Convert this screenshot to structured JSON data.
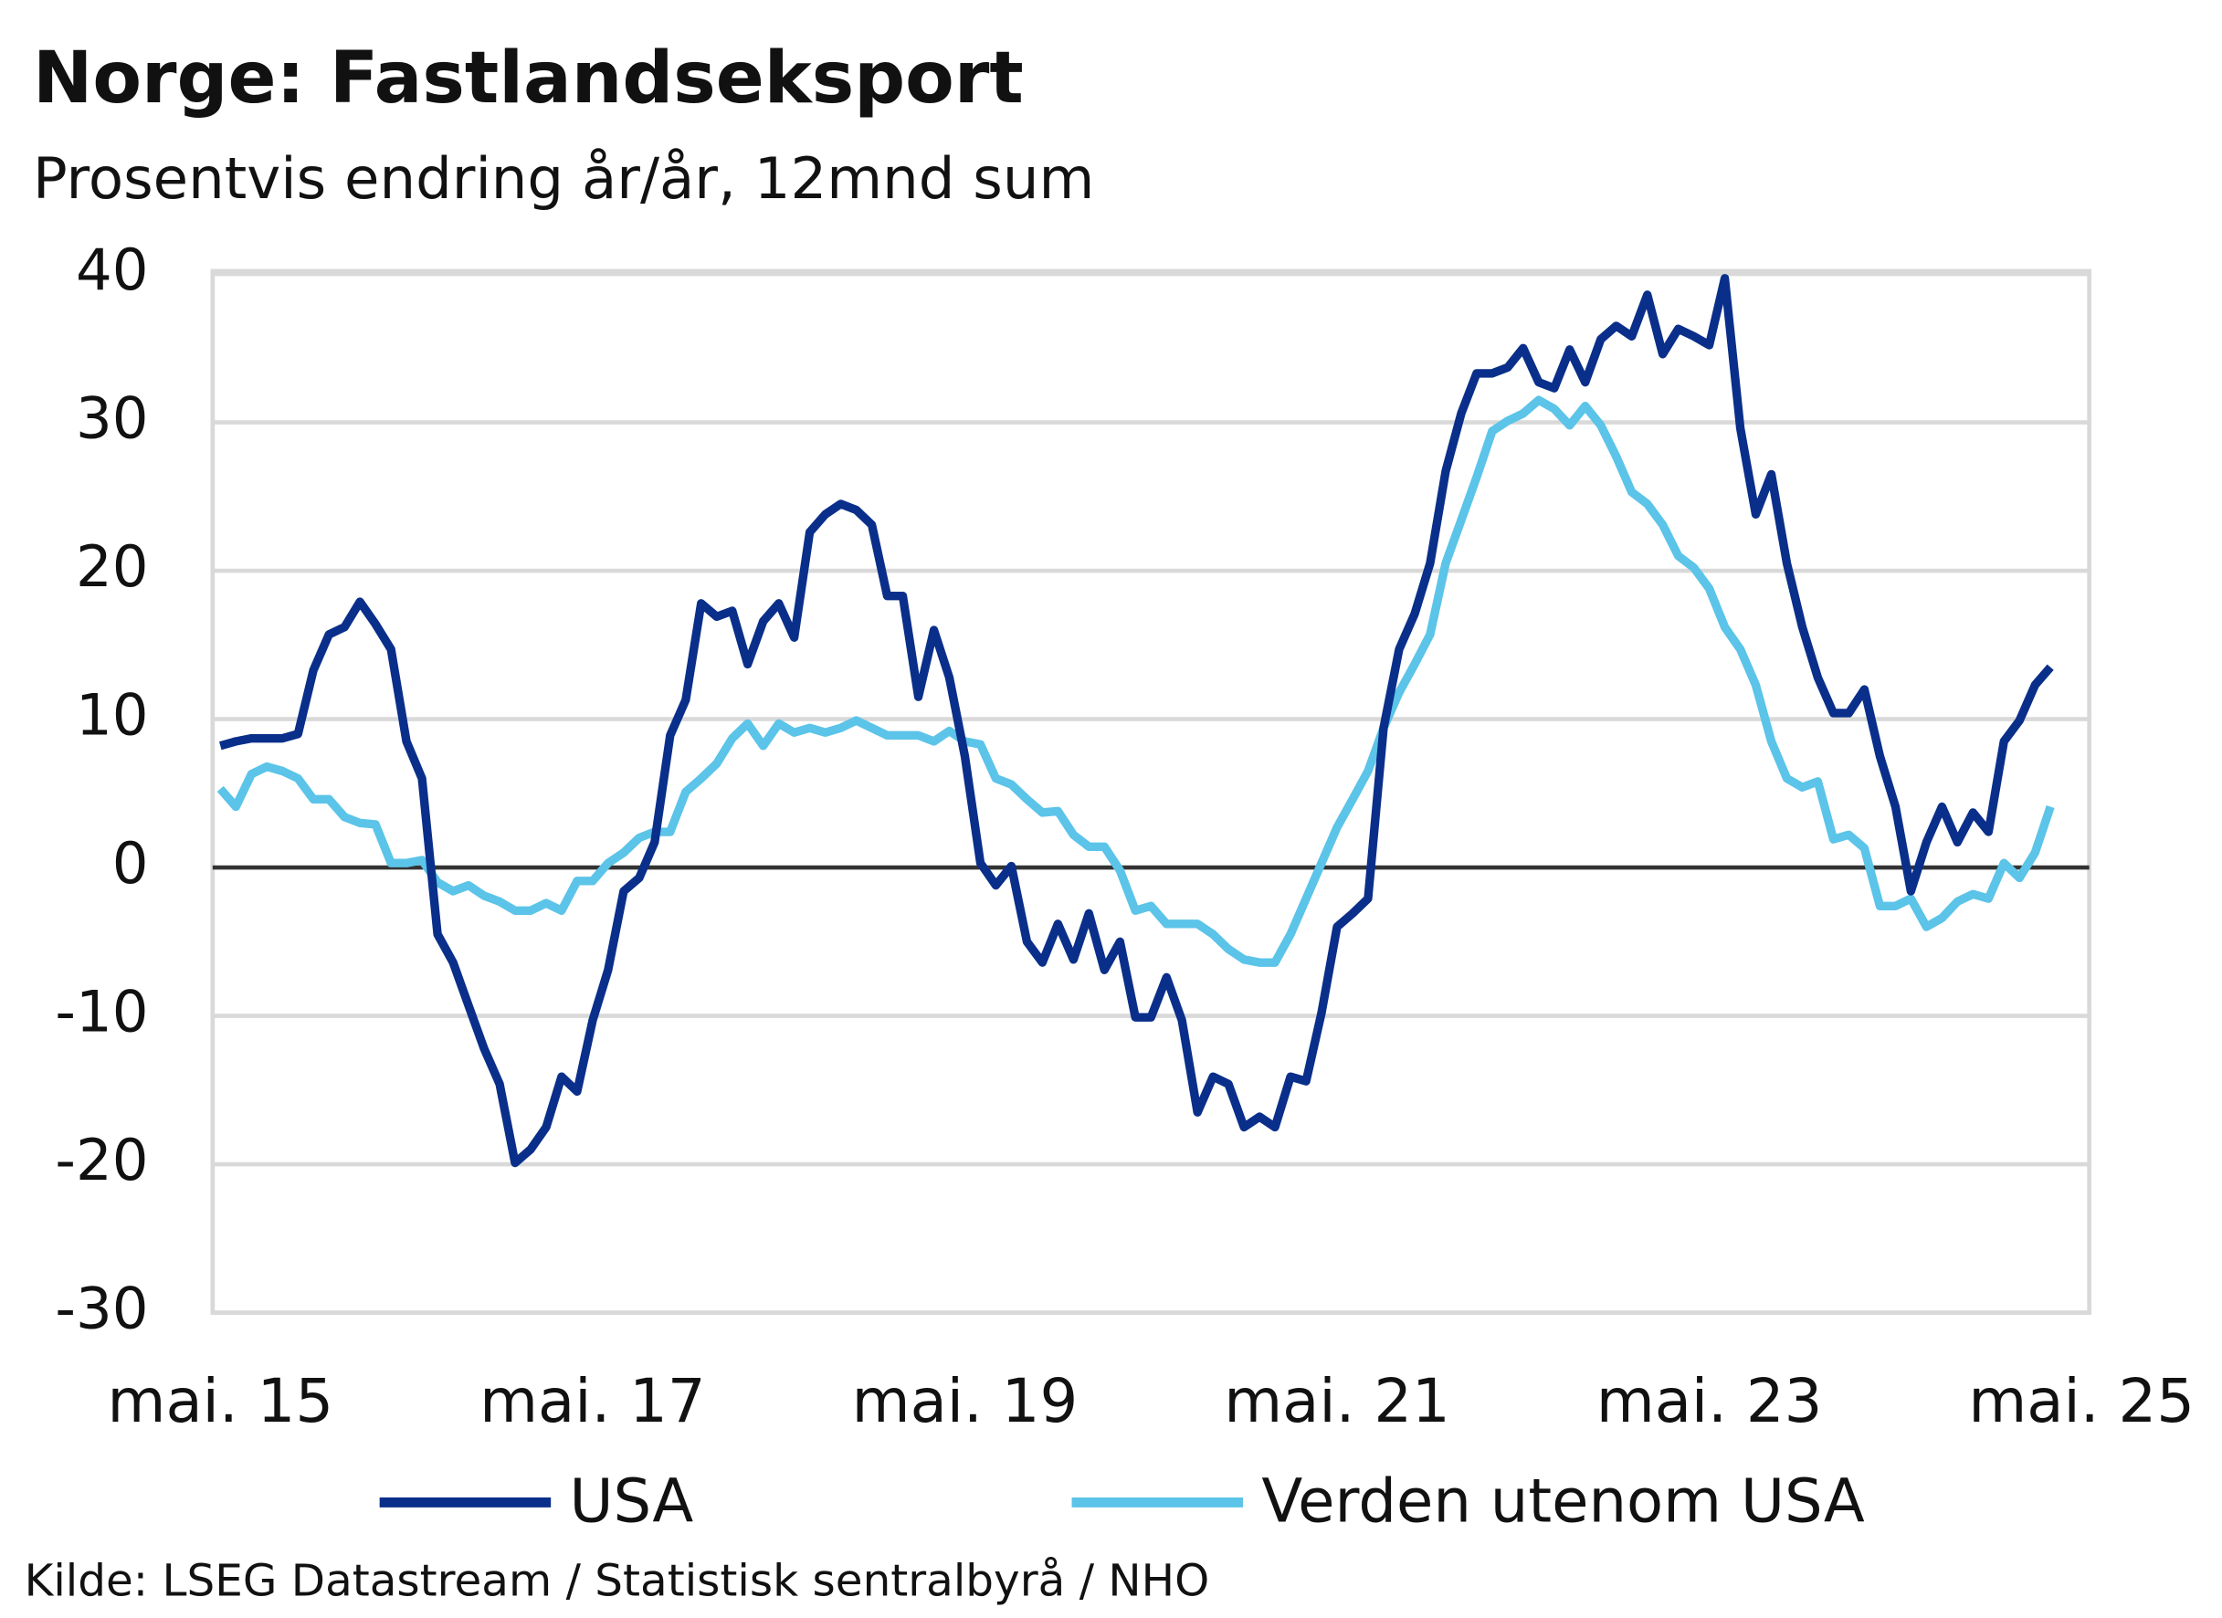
{
  "chart_data": {
    "type": "line",
    "title": "Norge:  Fastlandseksport",
    "subtitle": "Prosentvis endring år/år, 12mnd sum",
    "source": "Kilde: LSEG Datastream / Statistisk sentralbyrå / NHO",
    "categories": [
      "mai. 15",
      null,
      null,
      null,
      null,
      null,
      null,
      null,
      null,
      null,
      null,
      null,
      null,
      null,
      null,
      null,
      null,
      null,
      null,
      null,
      null,
      null,
      null,
      null,
      "mai. 17",
      null,
      null,
      null,
      null,
      null,
      null,
      null,
      null,
      null,
      null,
      null,
      null,
      null,
      null,
      null,
      null,
      null,
      null,
      null,
      null,
      null,
      null,
      null,
      "mai. 19",
      null,
      null,
      null,
      null,
      null,
      null,
      null,
      null,
      null,
      null,
      null,
      null,
      null,
      null,
      null,
      null,
      null,
      null,
      null,
      null,
      null,
      null,
      null,
      "mai. 21",
      null,
      null,
      null,
      null,
      null,
      null,
      null,
      null,
      null,
      null,
      null,
      null,
      null,
      null,
      null,
      null,
      null,
      null,
      null,
      null,
      null,
      null,
      null,
      "mai. 23",
      null,
      null,
      null,
      null,
      null,
      null,
      null,
      null,
      null,
      null,
      null,
      null,
      null,
      null,
      null,
      null,
      null,
      null,
      null,
      null,
      null,
      null,
      null,
      "mai. 25"
    ],
    "series": [
      {
        "name": "USA",
        "color": "#0a2f8a",
        "values": [
          8.2,
          8.5,
          8.7,
          8.7,
          8.7,
          9,
          13.3,
          15.7,
          16.2,
          17.9,
          16.4,
          14.7,
          8.5,
          6,
          -4.5,
          -6.4,
          -9.3,
          -12.2,
          -14.6,
          -19.9,
          -19,
          -17.5,
          -14.1,
          -15.1,
          -10.3,
          -6.9,
          -1.6,
          -0.7,
          1.7,
          8.9,
          11.3,
          17.8,
          16.9,
          17.3,
          13.7,
          16.6,
          17.8,
          15.5,
          22.6,
          23.8,
          24.5,
          24.1,
          23.1,
          18.3,
          18.3,
          11.5,
          16,
          12.8,
          7.5,
          0.3,
          -1.2,
          0.1,
          -5,
          -6.4,
          -3.8,
          -6.2,
          -3.1,
          -6.9,
          -5,
          -10.1,
          -10.1,
          -7.4,
          -10.3,
          -16.5,
          -14.1,
          -14.6,
          -17.5,
          -16.8,
          -17.5,
          -14.1,
          -14.4,
          -9.8,
          -4,
          -3.1,
          -2.1,
          9.4,
          14.7,
          17.1,
          20.5,
          26.7,
          30.6,
          33.3,
          33.3,
          33.7,
          35,
          32.7,
          32.3,
          34.9,
          32.7,
          35.6,
          36.5,
          35.8,
          38.6,
          34.6,
          36.3,
          35.8,
          35.2,
          39.7,
          29.6,
          23.8,
          26.5,
          20.5,
          16.2,
          12.8,
          10.4,
          10.4,
          12,
          7.5,
          4.1,
          -1.6,
          1.7,
          4.1,
          1.7,
          3.7,
          2.4,
          8.5,
          9.9,
          12.3,
          13.5,
          null,
          null
        ]
      },
      {
        "name": "Verden utenom USA",
        "color": "#5bc4e8",
        "values": [
          5.3,
          4.1,
          6.3,
          6.8,
          6.5,
          6,
          4.6,
          4.6,
          3.4,
          3,
          2.9,
          0.3,
          0.3,
          0.5,
          -1,
          -1.6,
          -1.2,
          -1.9,
          -2.3,
          -2.9,
          -2.9,
          -2.4,
          -2.9,
          -0.9,
          -0.9,
          0.3,
          1,
          2,
          2.4,
          2.4,
          5.1,
          6,
          7,
          8.7,
          9.7,
          8.2,
          9.7,
          9.1,
          9.4,
          9.1,
          9.4,
          9.9,
          9.4,
          8.9,
          8.9,
          8.9,
          8.5,
          9.2,
          8.5,
          8.3,
          6,
          5.6,
          4.6,
          3.7,
          3.8,
          2.2,
          1.4,
          1.4,
          -0.2,
          -2.9,
          -2.6,
          -3.8,
          -3.8,
          -3.8,
          -4.5,
          -5.5,
          -6.2,
          -6.4,
          -6.4,
          -4.5,
          -2.1,
          0.3,
          2.7,
          4.6,
          6.5,
          9.4,
          11.8,
          13.7,
          15.7,
          20.5,
          23.4,
          26.3,
          29.4,
          30.1,
          30.6,
          31.5,
          30.9,
          29.8,
          31.1,
          29.8,
          27.7,
          25.3,
          24.5,
          23.1,
          21,
          20.2,
          18.8,
          16.2,
          14.7,
          12.3,
          8.5,
          6,
          5.4,
          5.8,
          1.9,
          2.2,
          1.3,
          -2.6,
          -2.6,
          -2.1,
          -4,
          -3.4,
          -2.3,
          -1.8,
          -2.1,
          0.3,
          -0.7,
          1,
          4.1,
          null,
          null
        ]
      }
    ],
    "ylim": [
      -30,
      40
    ],
    "yticks": [
      -30,
      -20,
      -10,
      0,
      10,
      20,
      30,
      40
    ],
    "grid": true
  }
}
